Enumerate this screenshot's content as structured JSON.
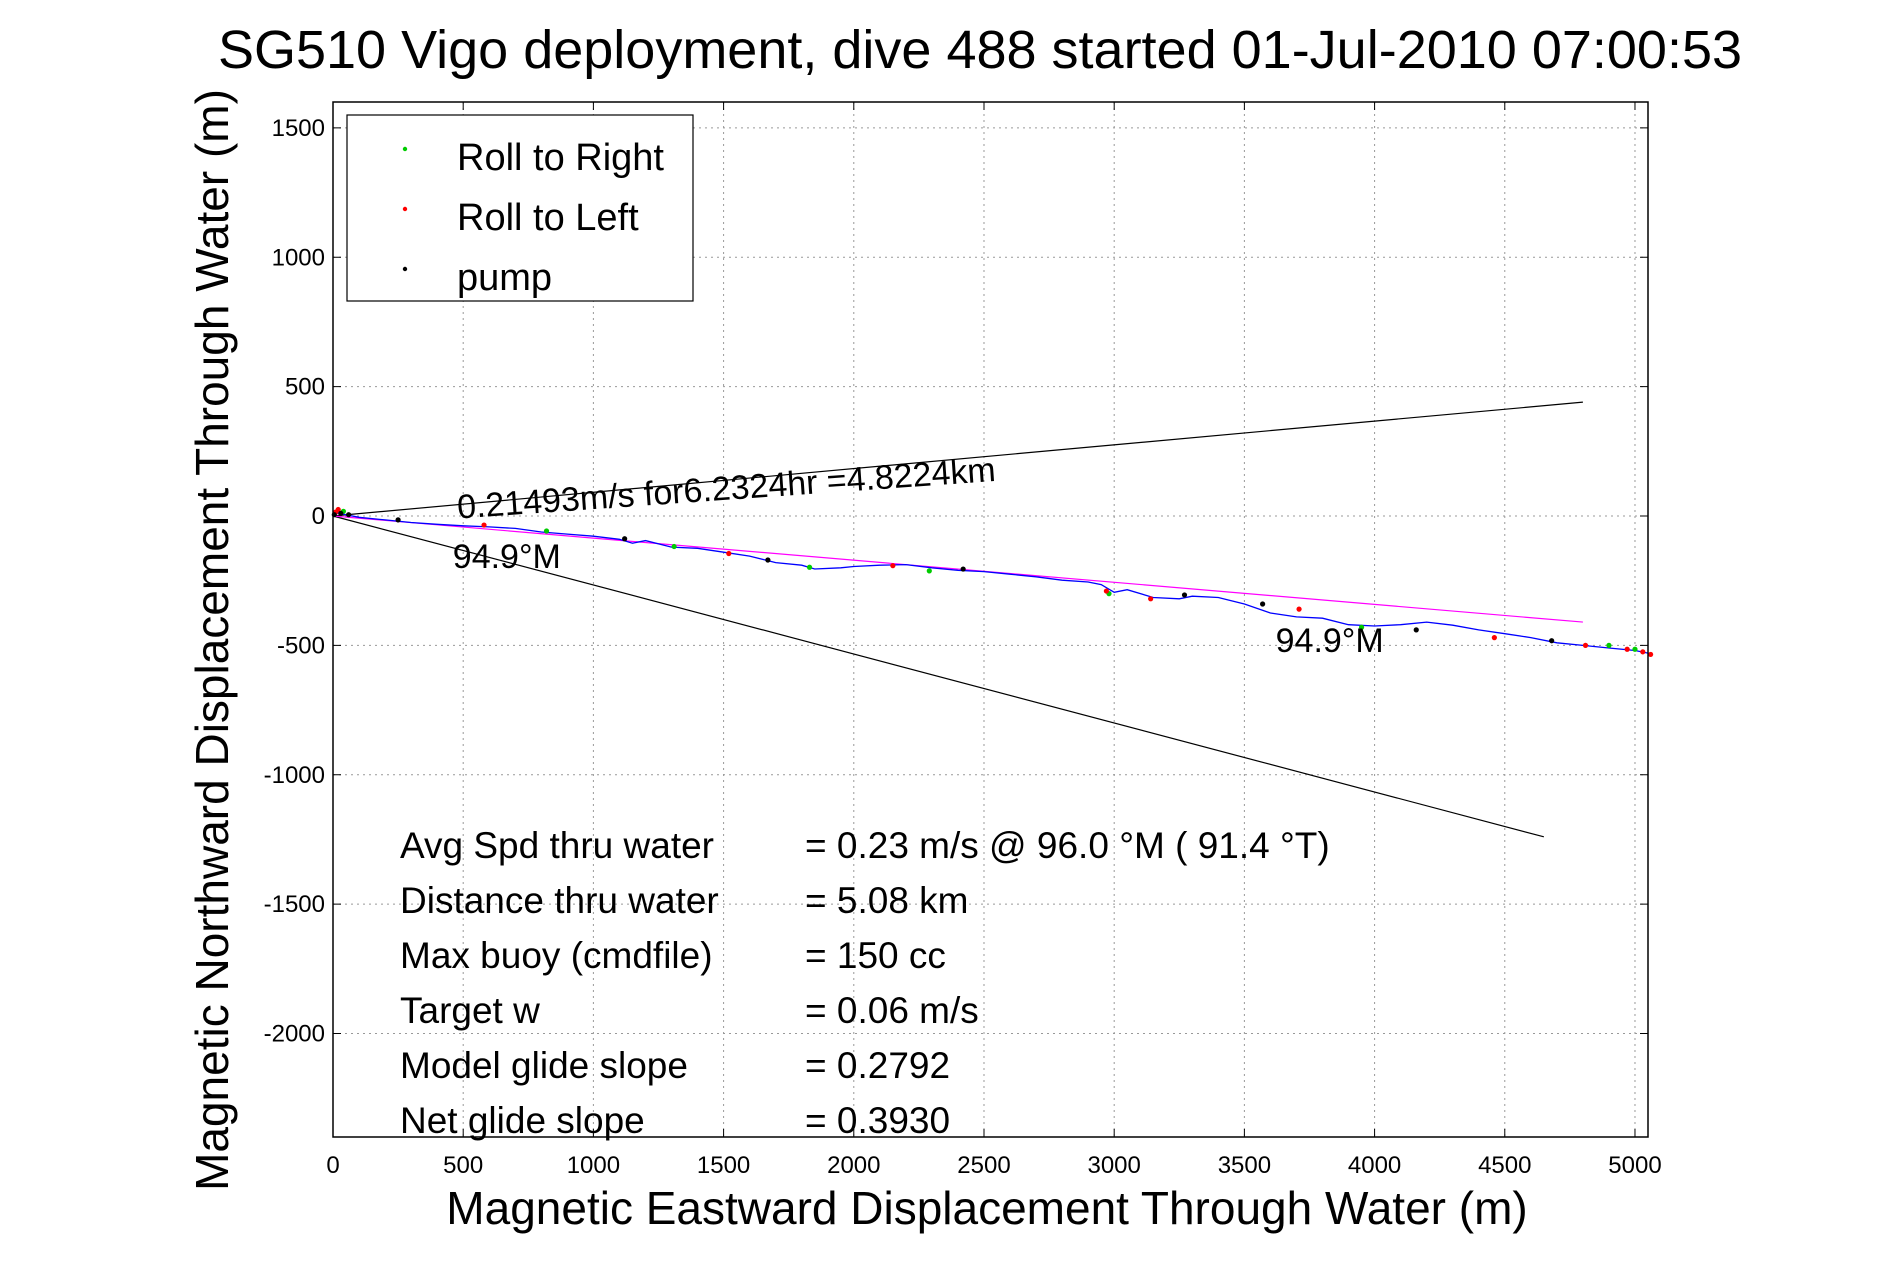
{
  "chart_data": {
    "type": "scatter",
    "title": "SG510 Vigo deployment, dive 488 started 01-Jul-2010 07:00:53",
    "xlabel": "Magnetic Eastward Displacement Through Water (m)",
    "ylabel": "Magnetic Northward Displacement Through Water (m)",
    "xlim": [
      0,
      5050
    ],
    "ylim": [
      -2400,
      1600
    ],
    "xticks": [
      0,
      500,
      1000,
      1500,
      2000,
      2500,
      3000,
      3500,
      4000,
      4500,
      5000
    ],
    "yticks": [
      -2000,
      -1500,
      -1000,
      -500,
      0,
      500,
      1000,
      1500
    ],
    "grid": true,
    "legend_position": "top-left",
    "series": [
      {
        "name": "Roll to Right",
        "color": "#00cc00",
        "marker": "dot",
        "x": [
          40,
          820,
          1310,
          1830,
          2290,
          2980,
          3950,
          4900,
          5000
        ],
        "y": [
          18,
          -58,
          -118,
          -198,
          -212,
          -300,
          -430,
          -500,
          -515
        ]
      },
      {
        "name": "Roll to Left",
        "color": "#ff0000",
        "marker": "dot",
        "x": [
          10,
          20,
          580,
          1520,
          2150,
          2970,
          3140,
          3710,
          4460,
          4810,
          4970,
          5030,
          5060
        ],
        "y": [
          15,
          25,
          -35,
          -145,
          -192,
          -290,
          -320,
          -360,
          -470,
          -500,
          -515,
          -525,
          -535
        ]
      },
      {
        "name": "pump",
        "color": "#000000",
        "marker": "dot",
        "x": [
          5,
          30,
          60,
          250,
          1120,
          1670,
          2420,
          3270,
          3570,
          4160,
          4680
        ],
        "y": [
          5,
          10,
          5,
          -15,
          -88,
          -170,
          -205,
          -305,
          -340,
          -440,
          -482
        ]
      }
    ],
    "track": {
      "color": "#0000ff",
      "x": [
        0,
        20,
        50,
        100,
        200,
        300,
        400,
        500,
        600,
        700,
        800,
        900,
        1000,
        1100,
        1150,
        1200,
        1300,
        1400,
        1500,
        1600,
        1700,
        1800,
        1850,
        1950,
        2000,
        2100,
        2200,
        2300,
        2400,
        2500,
        2600,
        2700,
        2800,
        2900,
        2950,
        3000,
        3050,
        3150,
        3250,
        3300,
        3400,
        3500,
        3600,
        3700,
        3800,
        3900,
        4000,
        4100,
        4200,
        4300,
        4400,
        4500,
        4600,
        4700,
        4800,
        4900,
        5000,
        5050
      ],
      "y": [
        0,
        12,
        5,
        -5,
        -15,
        -25,
        -32,
        -38,
        -42,
        -48,
        -62,
        -70,
        -78,
        -90,
        -105,
        -95,
        -120,
        -125,
        -140,
        -155,
        -180,
        -190,
        -205,
        -200,
        -195,
        -190,
        -188,
        -200,
        -210,
        -215,
        -225,
        -235,
        -248,
        -255,
        -265,
        -295,
        -285,
        -315,
        -320,
        -310,
        -315,
        -340,
        -375,
        -390,
        -395,
        -420,
        -425,
        -420,
        -410,
        -422,
        -440,
        -455,
        -470,
        -490,
        -500,
        -510,
        -520,
        -530
      ]
    },
    "heading_lines": [
      {
        "color": "#000000",
        "x": [
          0,
          4800
        ],
        "y": [
          0,
          440
        ]
      },
      {
        "color": "#000000",
        "x": [
          0,
          4650
        ],
        "y": [
          0,
          -1240
        ]
      },
      {
        "color": "#ff00ff",
        "x": [
          0,
          4800
        ],
        "y": [
          0,
          -410
        ]
      }
    ],
    "annotations": [
      {
        "text": "0.21493m/s for6.2324hr =4.8224km",
        "x": 480,
        "y": -10,
        "rotation": -4
      },
      {
        "text": "94.9°M",
        "x": 460,
        "y": -200,
        "rotation": 0
      },
      {
        "text": "94.9°M",
        "x": 3620,
        "y": -525,
        "rotation": 0
      }
    ],
    "summary": [
      {
        "label": "Avg Spd thru water",
        "value": "=  0.23 m/s @  96.0 °M ( 91.4 °T)"
      },
      {
        "label": "Distance thru water",
        "value": "=  5.08 km"
      },
      {
        "label": "Max buoy (cmdfile)",
        "value": "= 150 cc"
      },
      {
        "label": "Target w",
        "value": "= 0.06 m/s"
      },
      {
        "label": "Model glide slope",
        "value": "= 0.2792"
      },
      {
        "label": "Net glide slope",
        "value": "= 0.3930"
      }
    ]
  }
}
